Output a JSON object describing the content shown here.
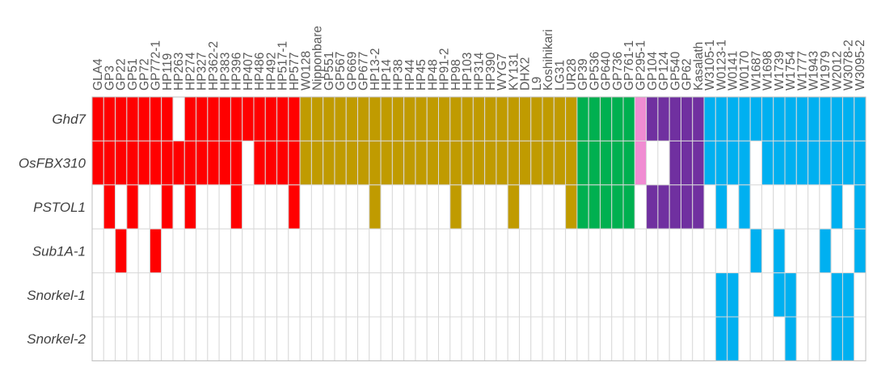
{
  "chart_data": {
    "type": "heatmap",
    "title": "",
    "rows": [
      "Ghd7",
      "OsFBX310",
      "PSTOL1",
      "Sub1A-1",
      "Snorkel-1",
      "Snorkel-2"
    ],
    "groups": [
      {
        "name": "red",
        "color": "#ff0000",
        "accessions": [
          "GLA4",
          "GP3",
          "GP22",
          "GP51",
          "GP72",
          "GP772-1",
          "HP119",
          "HP263",
          "HP274",
          "HP327",
          "HP362-2",
          "HP383",
          "HP396",
          "HP407",
          "HP486",
          "HP492",
          "HP517-1",
          "HP577"
        ]
      },
      {
        "name": "olive",
        "color": "#c09b00",
        "accessions": [
          "W0128",
          "Nipponbare",
          "GP551",
          "GP567",
          "GP669",
          "GP677",
          "HP13-2",
          "HP14",
          "HP38",
          "HP44",
          "HP45",
          "HP48",
          "HP91-2",
          "HP98",
          "HP103",
          "HP314",
          "HP390",
          "WYG7",
          "KY131",
          "DHX2",
          "L9",
          "Koshihikari",
          "LG31",
          "UR28"
        ]
      },
      {
        "name": "green",
        "color": "#00b050",
        "accessions": [
          "GP39",
          "GP536",
          "GP640",
          "GP736",
          "GP761-1"
        ]
      },
      {
        "name": "pink",
        "color": "#f08cd2",
        "accessions": [
          "GP295-1"
        ]
      },
      {
        "name": "purple",
        "color": "#7030a0",
        "accessions": [
          "GP104",
          "GP124",
          "GP540",
          "GP62",
          "Kasalath"
        ]
      },
      {
        "name": "blue",
        "color": "#00b0f0",
        "accessions": [
          "W3105-1",
          "W0123-1",
          "W0141",
          "W0170",
          "W1687",
          "W1698",
          "W1739",
          "W1754",
          "W1777",
          "W1943",
          "W1979",
          "W2012",
          "W3078-2",
          "W3095-2"
        ]
      }
    ],
    "presence": {
      "Ghd7": [
        1,
        1,
        1,
        1,
        1,
        1,
        1,
        0,
        1,
        1,
        1,
        1,
        1,
        1,
        1,
        1,
        1,
        1,
        1,
        1,
        1,
        1,
        1,
        1,
        1,
        1,
        1,
        1,
        1,
        1,
        1,
        1,
        1,
        1,
        1,
        1,
        1,
        1,
        1,
        1,
        1,
        1,
        1,
        1,
        1,
        1,
        1,
        1,
        1,
        1,
        1,
        1,
        1,
        1,
        1,
        1,
        1,
        1,
        1,
        1,
        1,
        1,
        1,
        1,
        1,
        1,
        1
      ],
      "OsFBX310": [
        1,
        1,
        1,
        1,
        1,
        1,
        1,
        1,
        1,
        1,
        1,
        1,
        1,
        0,
        1,
        1,
        1,
        1,
        1,
        1,
        1,
        1,
        1,
        1,
        1,
        1,
        1,
        1,
        1,
        1,
        1,
        1,
        1,
        1,
        1,
        1,
        1,
        1,
        1,
        1,
        1,
        1,
        1,
        1,
        1,
        1,
        1,
        1,
        0,
        0,
        1,
        1,
        1,
        1,
        1,
        1,
        1,
        0,
        1,
        1,
        1,
        1,
        1,
        1,
        1,
        1,
        1
      ],
      "PSTOL1": [
        0,
        1,
        0,
        1,
        0,
        0,
        1,
        0,
        1,
        0,
        0,
        0,
        1,
        0,
        0,
        0,
        0,
        1,
        0,
        0,
        0,
        0,
        0,
        0,
        1,
        0,
        0,
        0,
        0,
        0,
        0,
        1,
        0,
        0,
        0,
        0,
        1,
        0,
        0,
        0,
        0,
        1,
        1,
        1,
        1,
        1,
        1,
        0,
        1,
        1,
        1,
        1,
        1,
        0,
        1,
        0,
        1,
        0,
        0,
        0,
        0,
        0,
        0,
        0,
        1,
        0,
        1
      ],
      "Sub1A-1": [
        0,
        0,
        1,
        0,
        0,
        1,
        0,
        0,
        0,
        0,
        0,
        0,
        0,
        0,
        0,
        0,
        0,
        0,
        0,
        0,
        0,
        0,
        0,
        0,
        0,
        0,
        0,
        0,
        0,
        0,
        0,
        0,
        0,
        0,
        0,
        0,
        0,
        0,
        0,
        0,
        0,
        0,
        0,
        0,
        0,
        0,
        0,
        0,
        0,
        0,
        0,
        0,
        0,
        0,
        0,
        0,
        0,
        1,
        0,
        1,
        0,
        0,
        0,
        1,
        0,
        0,
        1
      ],
      "Snorkel-1": [
        0,
        0,
        0,
        0,
        0,
        0,
        0,
        0,
        0,
        0,
        0,
        0,
        0,
        0,
        0,
        0,
        0,
        0,
        0,
        0,
        0,
        0,
        0,
        0,
        0,
        0,
        0,
        0,
        0,
        0,
        0,
        0,
        0,
        0,
        0,
        0,
        0,
        0,
        0,
        0,
        0,
        0,
        0,
        0,
        0,
        0,
        0,
        0,
        0,
        0,
        0,
        0,
        0,
        0,
        1,
        1,
        0,
        0,
        0,
        1,
        1,
        0,
        0,
        0,
        1,
        1,
        0
      ],
      "Snorkel-2": [
        0,
        0,
        0,
        0,
        0,
        0,
        0,
        0,
        0,
        0,
        0,
        0,
        0,
        0,
        0,
        0,
        0,
        0,
        0,
        0,
        0,
        0,
        0,
        0,
        0,
        0,
        0,
        0,
        0,
        0,
        0,
        0,
        0,
        0,
        0,
        0,
        0,
        0,
        0,
        0,
        0,
        0,
        0,
        0,
        0,
        0,
        0,
        0,
        0,
        0,
        0,
        0,
        0,
        0,
        1,
        1,
        0,
        0,
        0,
        0,
        1,
        0,
        0,
        0,
        1,
        1,
        0
      ]
    }
  }
}
